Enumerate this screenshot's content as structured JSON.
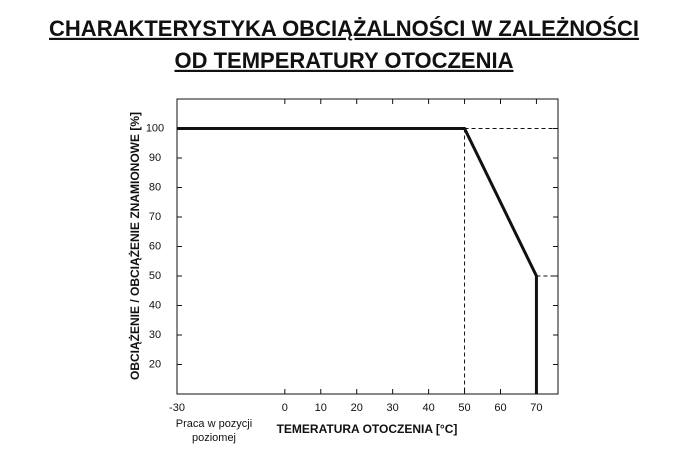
{
  "chart_data": {
    "type": "line",
    "title": [
      "CHARAKTERYSTYKA OBCIĄŻALNOŚCI W ZALEŻNOŚCI",
      "OD TEMPERATURY OTOCZENIA"
    ],
    "x_label": "TEMERATURA OTOCZENIA [°C]",
    "y_label": "OBCIĄŻENIE / OBCIĄŻENIE ZNAMIONOWE [%]",
    "annotation": [
      "Praca w pozycji",
      "poziomej"
    ],
    "x": [
      -30,
      50,
      70,
      70
    ],
    "series": [
      {
        "color": "#111111",
        "values": [
          100,
          100,
          50,
          10
        ]
      }
    ],
    "xlim": [
      -30,
      76
    ],
    "xticks": [
      -30,
      0,
      10,
      20,
      30,
      40,
      50,
      60,
      70
    ],
    "ylim": [
      10,
      110
    ],
    "yticks": [
      20,
      30,
      40,
      50,
      60,
      70,
      80,
      90,
      100
    ],
    "grid": false
  }
}
